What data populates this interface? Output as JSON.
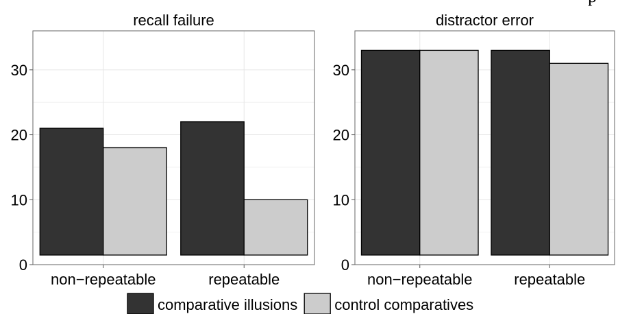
{
  "stray_text": "p",
  "legend": [
    {
      "label": "comparative illusions",
      "color": "#333333"
    },
    {
      "label": "control comparatives",
      "color": "#cccccc"
    }
  ],
  "chart_data": [
    {
      "type": "bar",
      "title": "recall failure",
      "categories": [
        "non−repeatable",
        "repeatable"
      ],
      "series": [
        {
          "name": "comparative illusions",
          "values": [
            21,
            22
          ]
        },
        {
          "name": "control comparatives",
          "values": [
            18,
            10
          ]
        }
      ],
      "ylim": [
        0,
        36
      ],
      "yticks": [
        0,
        10,
        20,
        30
      ],
      "grid": true,
      "legend_position": "bottom"
    },
    {
      "type": "bar",
      "title": "distractor error",
      "categories": [
        "non−repeatable",
        "repeatable"
      ],
      "series": [
        {
          "name": "comparative illusions",
          "values": [
            33,
            33
          ]
        },
        {
          "name": "control comparatives",
          "values": [
            33,
            31
          ]
        }
      ],
      "ylim": [
        0,
        36
      ],
      "yticks": [
        0,
        10,
        20,
        30
      ],
      "grid": true,
      "legend_position": "bottom"
    }
  ]
}
